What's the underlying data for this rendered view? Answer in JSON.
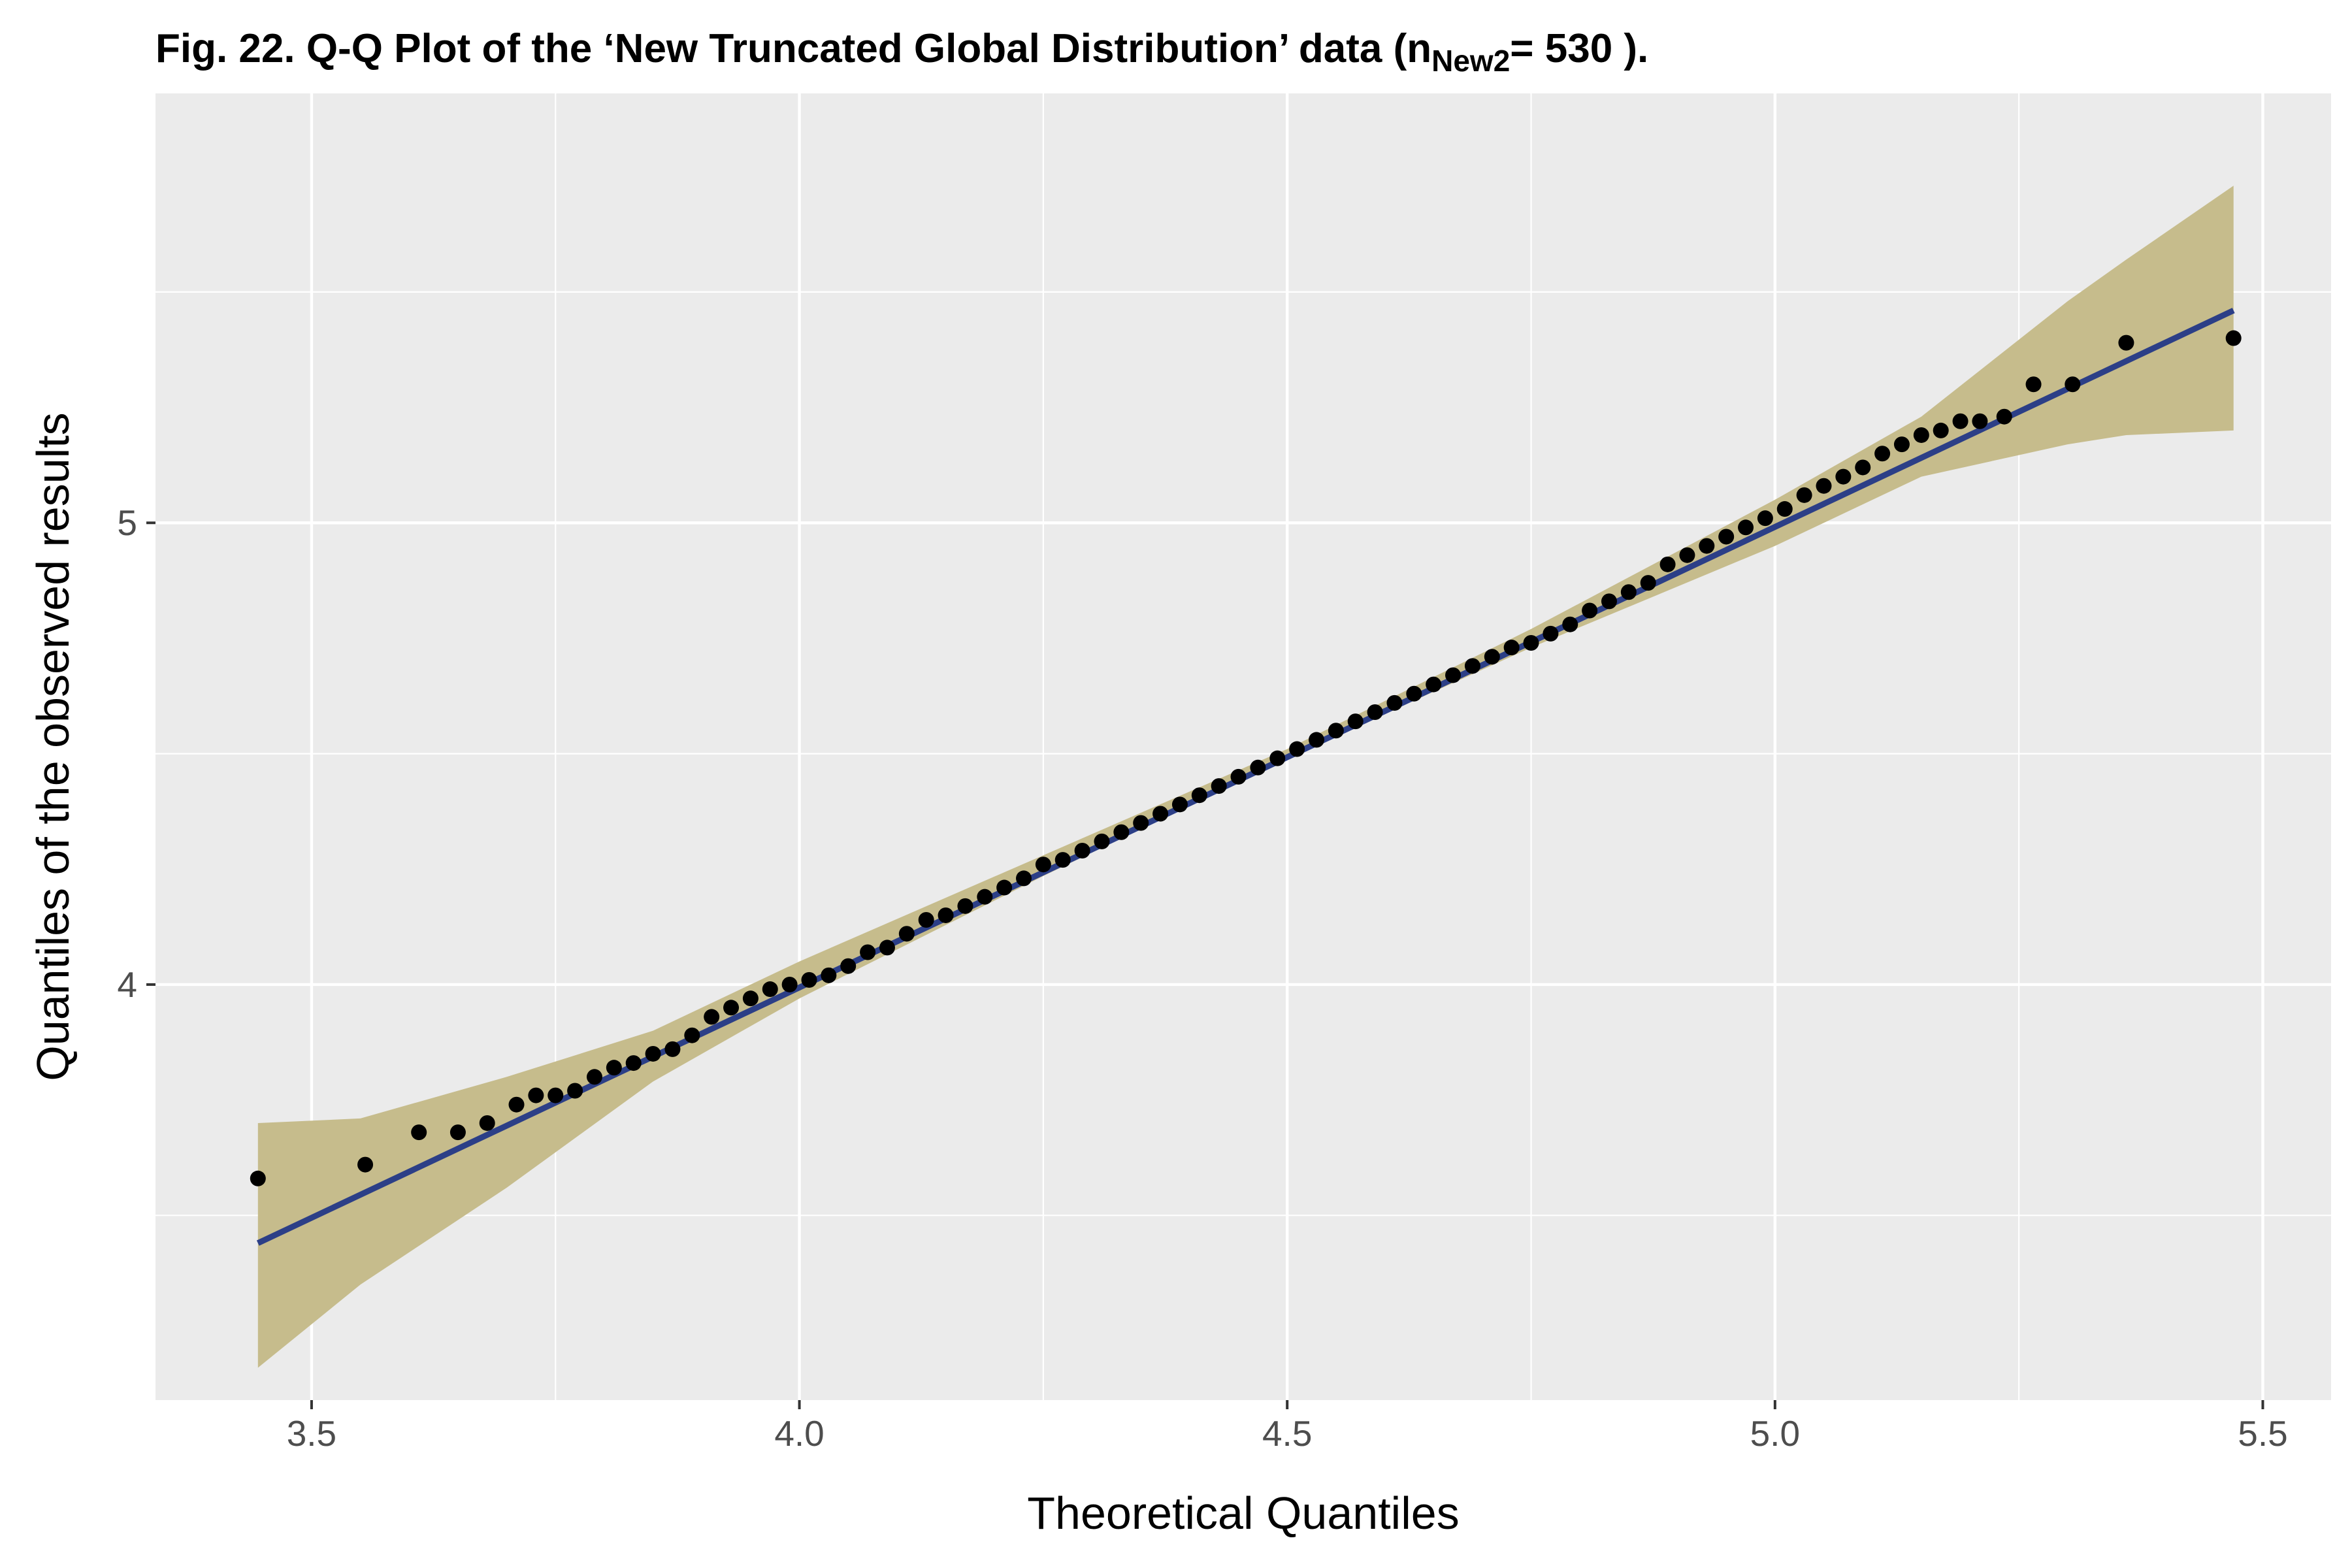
{
  "title": {
    "prefix": "Fig. 22. Q-Q Plot of the ‘New Truncated Global Distribution’ data (n",
    "subscript": "New2",
    "suffix": "= 530 )."
  },
  "chart_data": {
    "type": "scatter",
    "xlabel": "Theoretical Quantiles",
    "ylabel": "Quantiles of the observed results",
    "xlim": [
      3.34,
      5.57
    ],
    "ylim": [
      3.1,
      5.93
    ],
    "x_ticks": [
      {
        "value": 3.5,
        "label": "3.5"
      },
      {
        "value": 4.0,
        "label": "4.0"
      },
      {
        "value": 4.5,
        "label": "4.5"
      },
      {
        "value": 5.0,
        "label": "5.0"
      },
      {
        "value": 5.5,
        "label": "5.5"
      }
    ],
    "y_ticks": [
      {
        "value": 4,
        "label": "4"
      },
      {
        "value": 5,
        "label": "5"
      }
    ],
    "x_minor_grid": [
      3.75,
      4.25,
      4.75,
      5.25
    ],
    "y_minor_grid": [
      3.5,
      4.5,
      5.5
    ],
    "grid": true,
    "reference_line": {
      "x": [
        3.445,
        5.47
      ],
      "y": [
        3.44,
        5.46
      ]
    },
    "confidence_band": {
      "x": [
        3.445,
        3.55,
        3.7,
        3.85,
        4.0,
        4.25,
        4.5,
        4.75,
        5.0,
        5.15,
        5.3,
        5.36,
        5.47
      ],
      "lower": [
        3.17,
        3.35,
        3.56,
        3.79,
        3.97,
        4.235,
        4.49,
        4.73,
        4.95,
        5.1,
        5.17,
        5.19,
        5.2
      ],
      "upper": [
        3.7,
        3.71,
        3.8,
        3.9,
        4.05,
        4.28,
        4.51,
        4.77,
        5.05,
        5.23,
        5.48,
        5.57,
        5.73
      ]
    },
    "points": [
      {
        "x": 3.445,
        "y": 3.58
      },
      {
        "x": 3.555,
        "y": 3.61
      },
      {
        "x": 3.61,
        "y": 3.68
      },
      {
        "x": 3.65,
        "y": 3.68
      },
      {
        "x": 3.68,
        "y": 3.7
      },
      {
        "x": 3.71,
        "y": 3.74
      },
      {
        "x": 3.73,
        "y": 3.76
      },
      {
        "x": 3.75,
        "y": 3.76
      },
      {
        "x": 3.77,
        "y": 3.77
      },
      {
        "x": 3.79,
        "y": 3.8
      },
      {
        "x": 3.81,
        "y": 3.82
      },
      {
        "x": 3.83,
        "y": 3.83
      },
      {
        "x": 3.85,
        "y": 3.85
      },
      {
        "x": 3.87,
        "y": 3.86
      },
      {
        "x": 3.89,
        "y": 3.89
      },
      {
        "x": 3.91,
        "y": 3.93
      },
      {
        "x": 3.93,
        "y": 3.95
      },
      {
        "x": 3.95,
        "y": 3.97
      },
      {
        "x": 3.97,
        "y": 3.99
      },
      {
        "x": 3.99,
        "y": 4.0
      },
      {
        "x": 4.01,
        "y": 4.01
      },
      {
        "x": 4.03,
        "y": 4.02
      },
      {
        "x": 4.05,
        "y": 4.04
      },
      {
        "x": 4.07,
        "y": 4.07
      },
      {
        "x": 4.09,
        "y": 4.08
      },
      {
        "x": 4.11,
        "y": 4.11
      },
      {
        "x": 4.13,
        "y": 4.14
      },
      {
        "x": 4.15,
        "y": 4.15
      },
      {
        "x": 4.17,
        "y": 4.17
      },
      {
        "x": 4.19,
        "y": 4.19
      },
      {
        "x": 4.21,
        "y": 4.21
      },
      {
        "x": 4.23,
        "y": 4.23
      },
      {
        "x": 4.25,
        "y": 4.26
      },
      {
        "x": 4.27,
        "y": 4.27
      },
      {
        "x": 4.29,
        "y": 4.29
      },
      {
        "x": 4.31,
        "y": 4.31
      },
      {
        "x": 4.33,
        "y": 4.33
      },
      {
        "x": 4.35,
        "y": 4.35
      },
      {
        "x": 4.37,
        "y": 4.37
      },
      {
        "x": 4.39,
        "y": 4.39
      },
      {
        "x": 4.41,
        "y": 4.41
      },
      {
        "x": 4.43,
        "y": 4.43
      },
      {
        "x": 4.45,
        "y": 4.45
      },
      {
        "x": 4.47,
        "y": 4.47
      },
      {
        "x": 4.49,
        "y": 4.49
      },
      {
        "x": 4.51,
        "y": 4.51
      },
      {
        "x": 4.53,
        "y": 4.53
      },
      {
        "x": 4.55,
        "y": 4.55
      },
      {
        "x": 4.57,
        "y": 4.57
      },
      {
        "x": 4.59,
        "y": 4.59
      },
      {
        "x": 4.61,
        "y": 4.61
      },
      {
        "x": 4.63,
        "y": 4.63
      },
      {
        "x": 4.65,
        "y": 4.65
      },
      {
        "x": 4.67,
        "y": 4.67
      },
      {
        "x": 4.69,
        "y": 4.69
      },
      {
        "x": 4.71,
        "y": 4.71
      },
      {
        "x": 4.73,
        "y": 4.73
      },
      {
        "x": 4.75,
        "y": 4.74
      },
      {
        "x": 4.77,
        "y": 4.76
      },
      {
        "x": 4.79,
        "y": 4.78
      },
      {
        "x": 4.81,
        "y": 4.81
      },
      {
        "x": 4.83,
        "y": 4.83
      },
      {
        "x": 4.85,
        "y": 4.85
      },
      {
        "x": 4.87,
        "y": 4.87
      },
      {
        "x": 4.89,
        "y": 4.91
      },
      {
        "x": 4.91,
        "y": 4.93
      },
      {
        "x": 4.93,
        "y": 4.95
      },
      {
        "x": 4.95,
        "y": 4.97
      },
      {
        "x": 4.97,
        "y": 4.99
      },
      {
        "x": 4.99,
        "y": 5.01
      },
      {
        "x": 5.01,
        "y": 5.03
      },
      {
        "x": 5.03,
        "y": 5.06
      },
      {
        "x": 5.05,
        "y": 5.08
      },
      {
        "x": 5.07,
        "y": 5.1
      },
      {
        "x": 5.09,
        "y": 5.12
      },
      {
        "x": 5.11,
        "y": 5.15
      },
      {
        "x": 5.13,
        "y": 5.17
      },
      {
        "x": 5.15,
        "y": 5.19
      },
      {
        "x": 5.17,
        "y": 5.2
      },
      {
        "x": 5.19,
        "y": 5.22
      },
      {
        "x": 5.21,
        "y": 5.22
      },
      {
        "x": 5.235,
        "y": 5.23
      },
      {
        "x": 5.265,
        "y": 5.3
      },
      {
        "x": 5.305,
        "y": 5.3
      },
      {
        "x": 5.36,
        "y": 5.39
      },
      {
        "x": 5.47,
        "y": 5.4
      }
    ],
    "colors": {
      "panel_background": "#ebebeb",
      "grid": "#ffffff",
      "band_fill": "#c6bc8c",
      "line": "#2c3f87",
      "points": "#000000"
    }
  }
}
